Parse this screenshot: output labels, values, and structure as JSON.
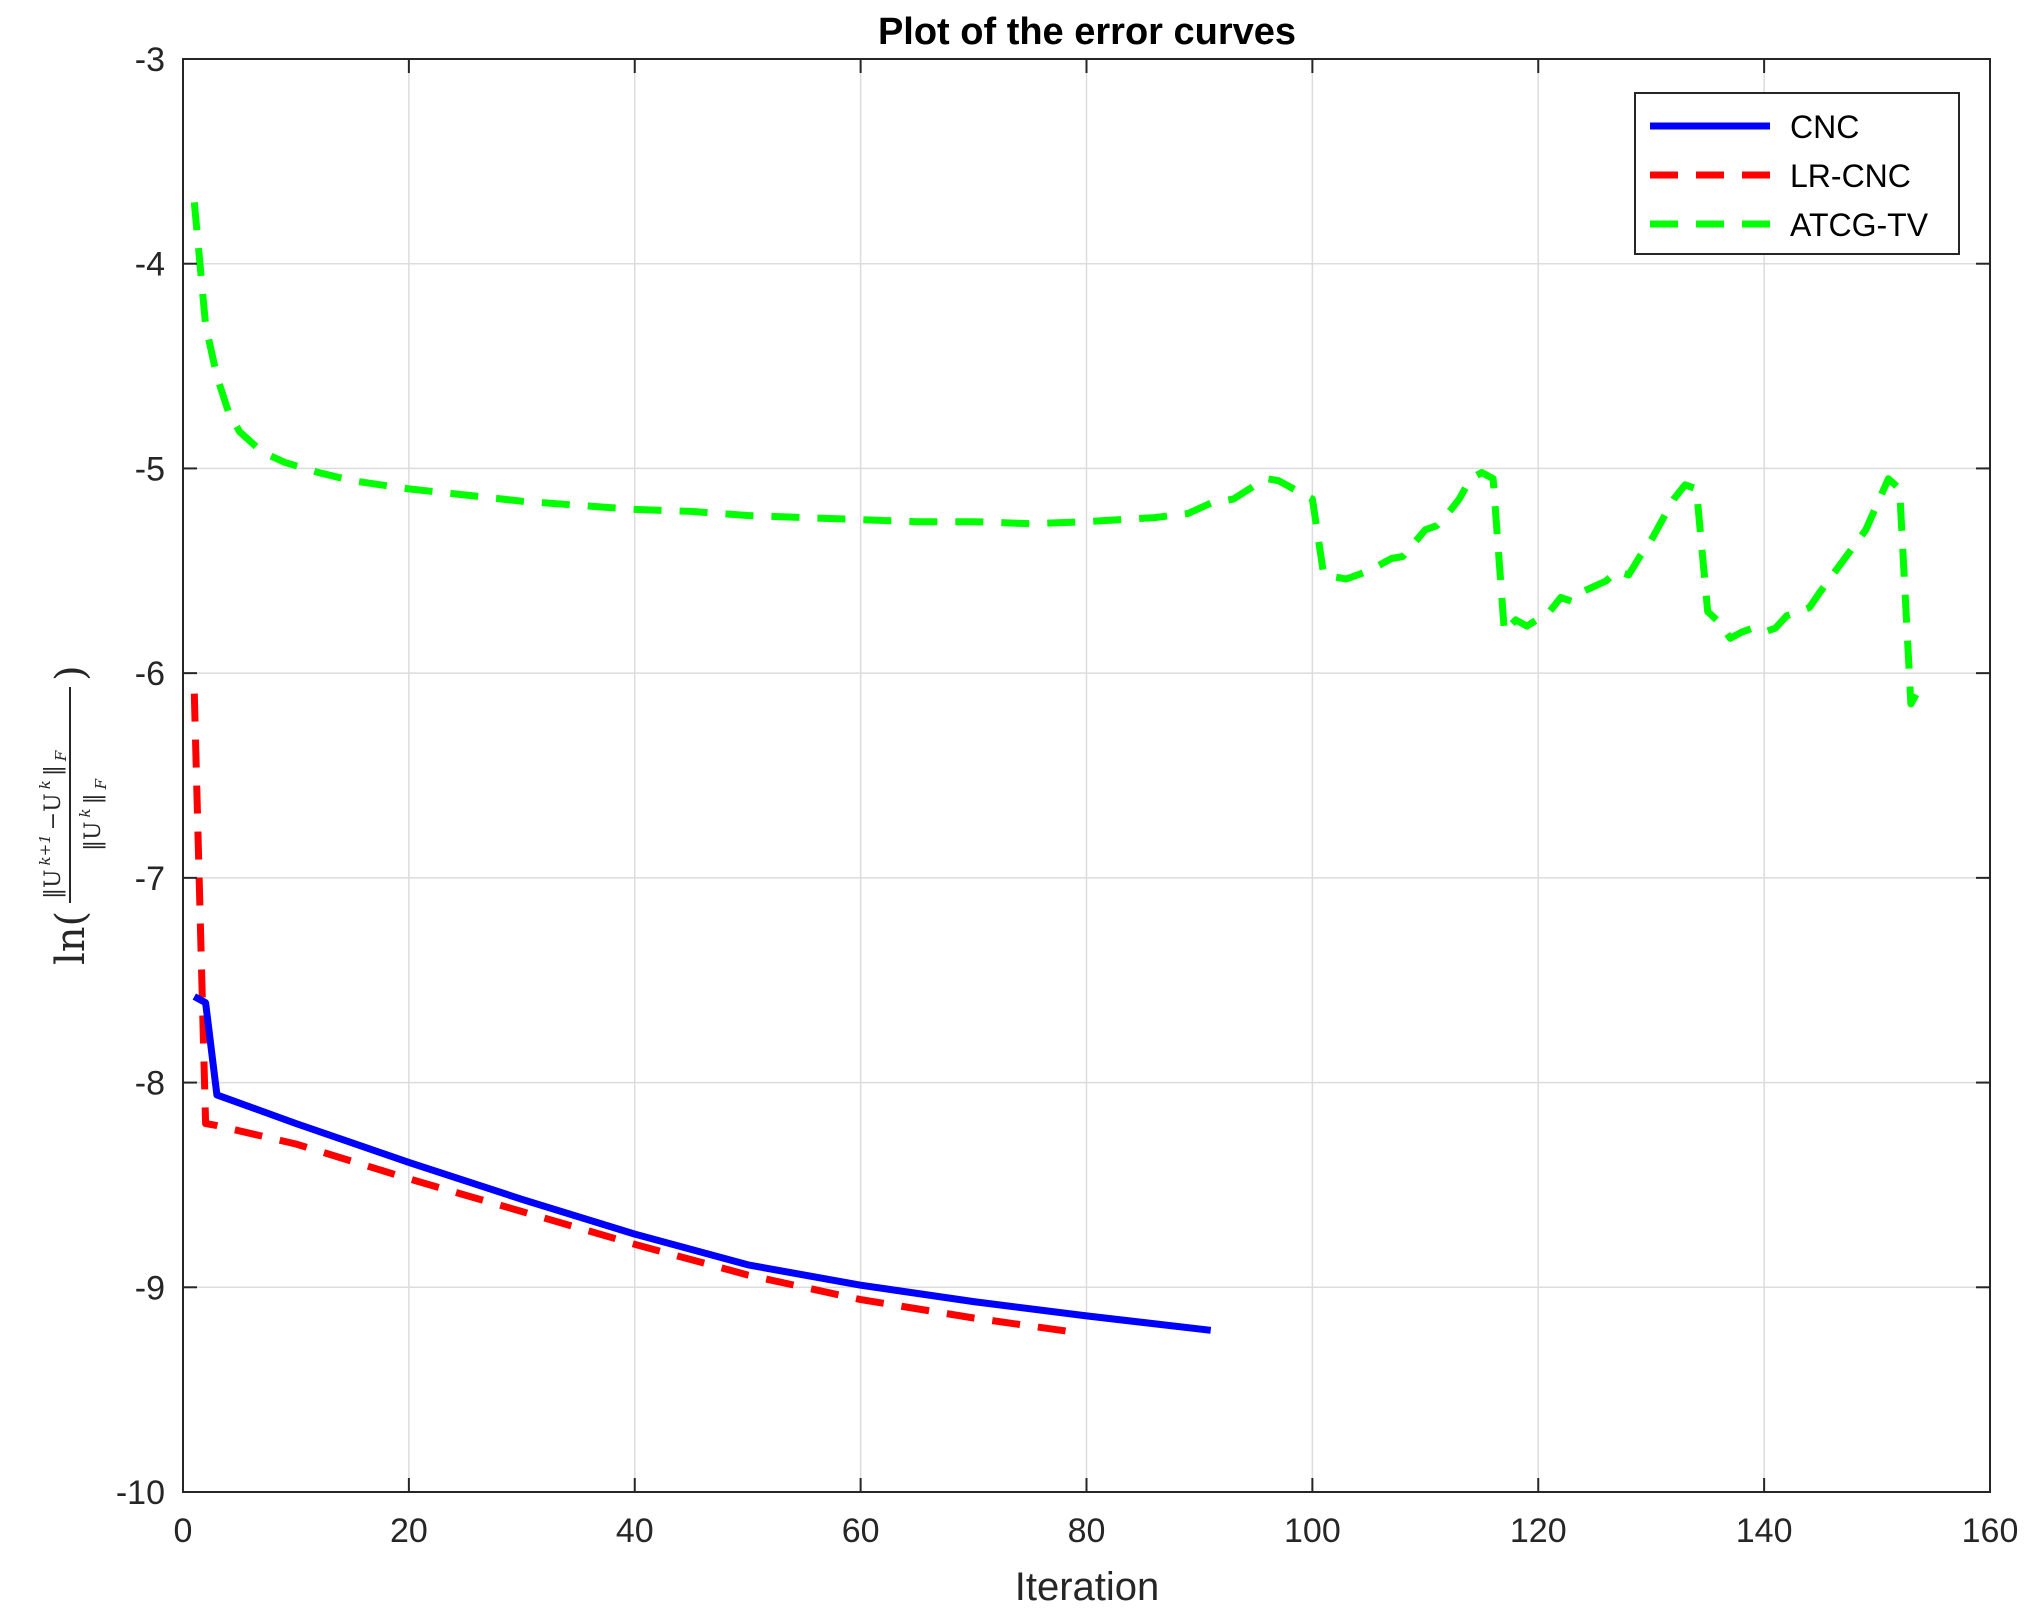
{
  "chart_data": {
    "type": "line",
    "title": "Plot of the error curves",
    "xlabel": "Iteration",
    "ylabel": {
      "prefix": "ln(",
      "numerator": "‖U",
      "numerator_sup": "k+1",
      "numerator_mid": "−U",
      "numerator_sup2": "k",
      "numerator_end": "‖",
      "numerator_sub": "F",
      "denominator": "‖U",
      "denominator_sup": "k",
      "denominator_end": "‖",
      "denominator_sub": "F",
      "suffix": ")"
    },
    "xlim": [
      0,
      160
    ],
    "ylim": [
      -10,
      -3
    ],
    "xticks": [
      0,
      20,
      40,
      60,
      80,
      100,
      120,
      140,
      160
    ],
    "xtick_labels": [
      "0",
      "20",
      "40",
      "60",
      "80",
      "100",
      "120",
      "140",
      "160"
    ],
    "yticks": [
      -10,
      -9,
      -8,
      -7,
      -6,
      -5,
      -4,
      -3
    ],
    "ytick_labels": [
      "-10",
      "-9",
      "-8",
      "-7",
      "-6",
      "-5",
      "-4",
      "-3"
    ],
    "grid": true,
    "legend_position": "top-right",
    "series": [
      {
        "name": "CNC",
        "color": "#0000ff",
        "style": "solid",
        "x": [
          1,
          2,
          3,
          10,
          20,
          30,
          40,
          50,
          60,
          70,
          80,
          91
        ],
        "y": [
          -7.58,
          -7.61,
          -8.06,
          -8.2,
          -8.39,
          -8.57,
          -8.74,
          -8.89,
          -8.99,
          -9.07,
          -9.14,
          -9.21
        ]
      },
      {
        "name": "LR-CNC",
        "color": "#ff0000",
        "style": "dashed",
        "x": [
          1,
          2,
          3,
          10,
          20,
          30,
          40,
          50,
          60,
          70,
          79
        ],
        "y": [
          -6.1,
          -8.2,
          -8.21,
          -8.3,
          -8.47,
          -8.63,
          -8.79,
          -8.94,
          -9.06,
          -9.15,
          -9.22
        ]
      },
      {
        "name": "ATCG-TV",
        "color": "#00ff00",
        "style": "dashed",
        "x": [
          1,
          2,
          3,
          4,
          5,
          7,
          9,
          12,
          15,
          20,
          25,
          30,
          35,
          40,
          45,
          50,
          55,
          60,
          65,
          70,
          75,
          80,
          83,
          86,
          89,
          91,
          93,
          95,
          96,
          97,
          99,
          100,
          101,
          103,
          105,
          107,
          108,
          110,
          111,
          112,
          113,
          114,
          115,
          116,
          117,
          118,
          119,
          121,
          122,
          123,
          124,
          126,
          127,
          128,
          129,
          130,
          131,
          132,
          133,
          134,
          135,
          136,
          137,
          138,
          139,
          140,
          141,
          142,
          143,
          144,
          145,
          147,
          149,
          151,
          152,
          153,
          154
        ],
        "y": [
          -3.7,
          -4.3,
          -4.55,
          -4.72,
          -4.82,
          -4.92,
          -4.97,
          -5.02,
          -5.06,
          -5.1,
          -5.13,
          -5.16,
          -5.18,
          -5.2,
          -5.21,
          -5.23,
          -5.24,
          -5.25,
          -5.26,
          -5.26,
          -5.27,
          -5.26,
          -5.25,
          -5.24,
          -5.22,
          -5.17,
          -5.15,
          -5.08,
          -5.05,
          -5.06,
          -5.12,
          -5.15,
          -5.52,
          -5.54,
          -5.5,
          -5.44,
          -5.43,
          -5.3,
          -5.28,
          -5.22,
          -5.15,
          -5.05,
          -5.02,
          -5.05,
          -5.8,
          -5.74,
          -5.77,
          -5.7,
          -5.63,
          -5.65,
          -5.6,
          -5.55,
          -5.5,
          -5.52,
          -5.43,
          -5.35,
          -5.25,
          -5.15,
          -5.08,
          -5.1,
          -5.7,
          -5.75,
          -5.83,
          -5.8,
          -5.78,
          -5.8,
          -5.78,
          -5.72,
          -5.7,
          -5.68,
          -5.6,
          -5.45,
          -5.3,
          -5.05,
          -5.1,
          -6.15,
          -6.05
        ]
      }
    ]
  }
}
